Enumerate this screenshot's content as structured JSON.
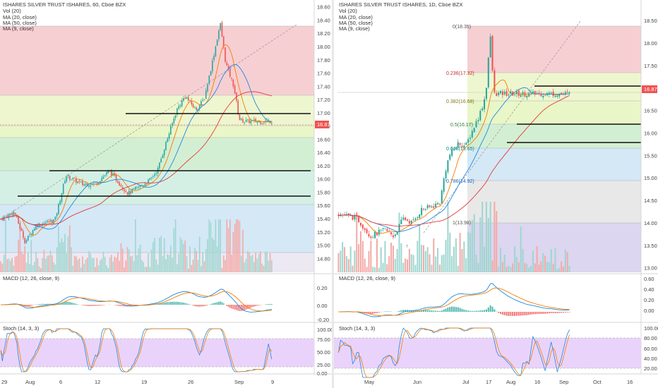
{
  "left_chart": {
    "header": {
      "title": "ISHARES SILVER TRUST ISHARES, 60, Cboe BZX",
      "vol": "Vol (20)",
      "ma1": "MA (20, close)",
      "ma2": "MA (50, close)",
      "ma3": "MA (9, close)"
    },
    "price_ticks": [
      "18.60",
      "18.40",
      "18.20",
      "18.00",
      "17.80",
      "17.60",
      "17.40",
      "17.20",
      "17.00",
      "16.80",
      "16.60",
      "16.40",
      "16.20",
      "16.00",
      "15.80",
      "15.60",
      "15.40",
      "15.20",
      "15.00",
      "14.80"
    ],
    "last_price": "16.87",
    "macd_label": "MACD (12, 26, close, 9)",
    "macd_ticks": [
      "0.20",
      "0.00",
      "-0.20"
    ],
    "stoch_label": "Stoch (14, 3, 3)",
    "stoch_ticks": [
      "100.00",
      "75.00",
      "50.00",
      "25.00",
      "0.00"
    ],
    "x_ticks": [
      "29",
      "Aug",
      "6",
      "12",
      "19",
      "26",
      "Sep",
      "9"
    ]
  },
  "right_chart": {
    "header": {
      "title": "ISHARES SILVER TRUST ISHARES, 1D, Cboe BZX",
      "vol": "Vol (20)",
      "ma1": "MA (20, close)",
      "ma2": "MA (50, close)",
      "ma3": "MA (9, close)"
    },
    "price_ticks": [
      "18.50",
      "18.00",
      "17.50",
      "17.00",
      "16.50",
      "16.00",
      "15.50",
      "15.00",
      "14.50",
      "14.00",
      "13.50",
      "13.00"
    ],
    "last_price": "16.87",
    "fib_labels": [
      "0(18.35)",
      "0.236(17.32)",
      "0.382(16.68)",
      "0.5(16.17)",
      "0.618(15.65)",
      "0.786(14.92)",
      "1(13.98)"
    ],
    "low_marker": "↑",
    "macd_label": "MACD (12, 26, close, 9)",
    "macd_ticks": [
      "0.60",
      "0.40",
      "0.20",
      "0.00"
    ],
    "stoch_label": "Stoch (14, 3, 3)",
    "stoch_ticks": [
      "100.00",
      "80.00",
      "60.00",
      "40.00",
      "20.00"
    ],
    "x_ticks": [
      "May",
      "Jun",
      "Jul",
      "17",
      "Aug",
      "16",
      "Sep",
      "Oct",
      "16"
    ]
  },
  "colors": {
    "up": "#26a69a",
    "down": "#ef5350",
    "ma_red": "#e53935",
    "ma_blue": "#1e88e5",
    "ma_orange": "#f57c00",
    "stoch": "#ce93d8"
  },
  "chart_data": [
    {
      "type": "candlestick",
      "title": "ISHARES SILVER TRUST ISHARES, 60, Cboe BZX",
      "x_range": [
        "Jul 29",
        "Sep 9"
      ],
      "ylim": [
        14.75,
        18.65
      ],
      "last": 16.87,
      "key_levels": [
        17.03,
        16.19,
        15.78
      ],
      "path": [
        [
          0,
          15.4
        ],
        [
          0.05,
          15.5
        ],
        [
          0.09,
          15.05
        ],
        [
          0.13,
          15.3
        ],
        [
          0.2,
          15.38
        ],
        [
          0.24,
          16.05
        ],
        [
          0.3,
          15.92
        ],
        [
          0.35,
          15.93
        ],
        [
          0.4,
          16.12
        ],
        [
          0.47,
          15.78
        ],
        [
          0.55,
          15.98
        ],
        [
          0.58,
          16.15
        ],
        [
          0.61,
          16.55
        ],
        [
          0.65,
          17.05
        ],
        [
          0.68,
          17.25
        ],
        [
          0.72,
          17.05
        ],
        [
          0.75,
          17.2
        ],
        [
          0.78,
          17.75
        ],
        [
          0.8,
          18.15
        ],
        [
          0.81,
          18.35
        ],
        [
          0.83,
          17.75
        ],
        [
          0.86,
          17.4
        ],
        [
          0.88,
          16.9
        ],
        [
          0.9,
          16.87
        ]
      ]
    },
    {
      "type": "candlestick",
      "title": "ISHARES SILVER TRUST ISHARES, 1D, Cboe BZX",
      "x_range": [
        "Apr",
        "Oct"
      ],
      "ylim": [
        12.9,
        18.8
      ],
      "last": 16.87,
      "fibonacci": {
        "0": 18.35,
        "0.236": 17.32,
        "0.382": 16.68,
        "0.5": 16.17,
        "0.618": 15.65,
        "0.786": 14.92,
        "1": 13.98
      },
      "key_levels": [
        17.03,
        16.19,
        15.78
      ],
      "path": [
        [
          0,
          14.2
        ],
        [
          0.08,
          14.1
        ],
        [
          0.14,
          13.7
        ],
        [
          0.2,
          13.85
        ],
        [
          0.24,
          13.7
        ],
        [
          0.28,
          14.1
        ],
        [
          0.32,
          14.0
        ],
        [
          0.36,
          14.3
        ],
        [
          0.4,
          14.35
        ],
        [
          0.44,
          14.45
        ],
        [
          0.46,
          15.1
        ],
        [
          0.48,
          15.5
        ],
        [
          0.52,
          15.78
        ],
        [
          0.55,
          15.7
        ],
        [
          0.58,
          16.05
        ],
        [
          0.61,
          16.4
        ],
        [
          0.63,
          16.7
        ],
        [
          0.645,
          17.2
        ],
        [
          0.655,
          18.35
        ],
        [
          0.665,
          17.5
        ],
        [
          0.675,
          16.87
        ]
      ]
    }
  ]
}
